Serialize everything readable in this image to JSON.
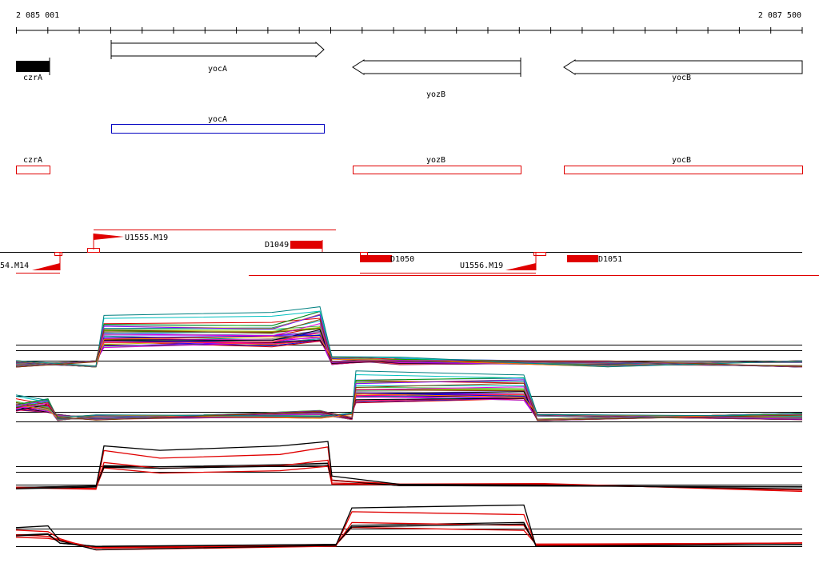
{
  "ruler": {
    "start": "2 085 001",
    "end": "2 087 500"
  },
  "genes": [
    "czrA",
    "yocA",
    "yozB",
    "yocB"
  ],
  "gene_models": [
    "yocA"
  ],
  "transcripts": [
    "czrA",
    "yozB",
    "yocB"
  ],
  "features": [
    "U1555.M19",
    "D1049",
    "54.M14",
    "D1050",
    "U1556.M19",
    "D1051"
  ]
}
